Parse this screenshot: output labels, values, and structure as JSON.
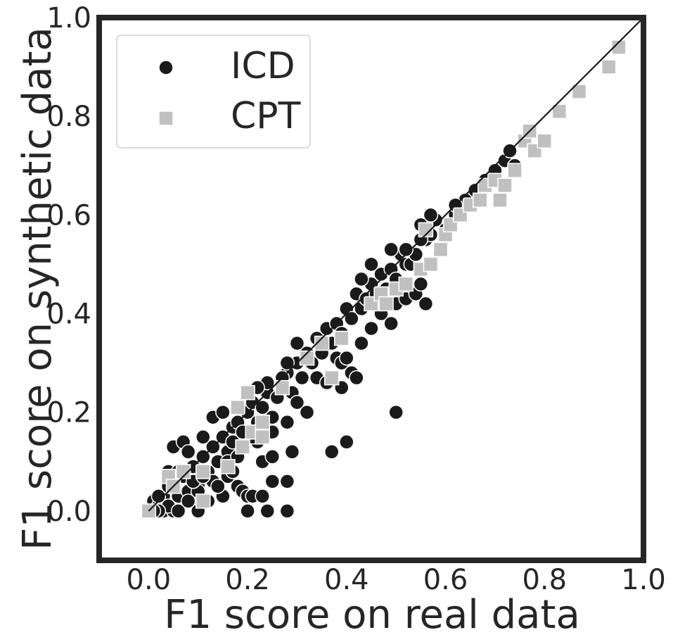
{
  "chart_data": {
    "type": "scatter",
    "title": "",
    "xlabel": "F1 score on real data",
    "ylabel": "F1 score on synthetic data",
    "xlim": [
      -0.1,
      1.0
    ],
    "ylim": [
      -0.1,
      1.0
    ],
    "xticks": [
      "0.0",
      "0.2",
      "0.4",
      "0.6",
      "0.8",
      "1.0"
    ],
    "yticks": [
      "0.0",
      "0.2",
      "0.4",
      "0.6",
      "0.8",
      "1.0"
    ],
    "grid": false,
    "legend_position": "top-left",
    "reference_line": {
      "from": [
        0,
        0
      ],
      "to": [
        1,
        1
      ],
      "color": "#1a1a1a"
    },
    "series": [
      {
        "name": "ICD",
        "marker": "circle",
        "color": "#1a1a1a",
        "points": [
          [
            0.0,
            0.0
          ],
          [
            0.01,
            0.02
          ],
          [
            0.02,
            0.01
          ],
          [
            0.03,
            0.03
          ],
          [
            0.03,
            0.0
          ],
          [
            0.05,
            0.05
          ],
          [
            0.05,
            0.0
          ],
          [
            0.06,
            0.03
          ],
          [
            0.07,
            0.07
          ],
          [
            0.08,
            0.04
          ],
          [
            0.09,
            0.09
          ],
          [
            0.1,
            0.05
          ],
          [
            0.1,
            0.0
          ],
          [
            0.11,
            0.11
          ],
          [
            0.12,
            0.08
          ],
          [
            0.13,
            0.13
          ],
          [
            0.14,
            0.1
          ],
          [
            0.15,
            0.15
          ],
          [
            0.16,
            0.12
          ],
          [
            0.17,
            0.14
          ],
          [
            0.05,
            0.13
          ],
          [
            0.07,
            0.14
          ],
          [
            0.11,
            0.15
          ],
          [
            0.13,
            0.19
          ],
          [
            0.04,
            0.08
          ],
          [
            0.08,
            0.12
          ],
          [
            0.15,
            0.2
          ],
          [
            0.17,
            0.17
          ],
          [
            0.18,
            0.18
          ],
          [
            0.19,
            0.16
          ],
          [
            0.2,
            0.2
          ],
          [
            0.21,
            0.22
          ],
          [
            0.22,
            0.18
          ],
          [
            0.23,
            0.21
          ],
          [
            0.24,
            0.24
          ],
          [
            0.25,
            0.19
          ],
          [
            0.26,
            0.23
          ],
          [
            0.27,
            0.25
          ],
          [
            0.28,
            0.28
          ],
          [
            0.29,
            0.24
          ],
          [
            0.3,
            0.3
          ],
          [
            0.31,
            0.27
          ],
          [
            0.32,
            0.32
          ],
          [
            0.33,
            0.3
          ],
          [
            0.34,
            0.35
          ],
          [
            0.35,
            0.32
          ],
          [
            0.36,
            0.37
          ],
          [
            0.37,
            0.34
          ],
          [
            0.38,
            0.38
          ],
          [
            0.39,
            0.36
          ],
          [
            0.4,
            0.41
          ],
          [
            0.41,
            0.39
          ],
          [
            0.42,
            0.44
          ],
          [
            0.43,
            0.41
          ],
          [
            0.44,
            0.43
          ],
          [
            0.45,
            0.46
          ],
          [
            0.46,
            0.44
          ],
          [
            0.47,
            0.48
          ],
          [
            0.48,
            0.45
          ],
          [
            0.49,
            0.49
          ],
          [
            0.5,
            0.47
          ],
          [
            0.51,
            0.52
          ],
          [
            0.52,
            0.5
          ],
          [
            0.53,
            0.5
          ],
          [
            0.54,
            0.52
          ],
          [
            0.55,
            0.58
          ],
          [
            0.56,
            0.55
          ],
          [
            0.57,
            0.56
          ],
          [
            0.58,
            0.59
          ],
          [
            0.6,
            0.57
          ],
          [
            0.62,
            0.6
          ],
          [
            0.64,
            0.63
          ],
          [
            0.66,
            0.65
          ],
          [
            0.7,
            0.69
          ],
          [
            0.72,
            0.71
          ],
          [
            0.73,
            0.73
          ],
          [
            0.74,
            0.7
          ],
          [
            0.28,
            0.3
          ],
          [
            0.3,
            0.34
          ],
          [
            0.27,
            0.27
          ],
          [
            0.24,
            0.26
          ],
          [
            0.22,
            0.25
          ],
          [
            0.22,
            0.14
          ],
          [
            0.25,
            0.16
          ],
          [
            0.28,
            0.18
          ],
          [
            0.3,
            0.22
          ],
          [
            0.32,
            0.2
          ],
          [
            0.34,
            0.27
          ],
          [
            0.36,
            0.26
          ],
          [
            0.38,
            0.31
          ],
          [
            0.39,
            0.3
          ],
          [
            0.4,
            0.31
          ],
          [
            0.41,
            0.28
          ],
          [
            0.43,
            0.34
          ],
          [
            0.45,
            0.37
          ],
          [
            0.47,
            0.4
          ],
          [
            0.49,
            0.38
          ],
          [
            0.5,
            0.42
          ],
          [
            0.52,
            0.43
          ],
          [
            0.54,
            0.44
          ],
          [
            0.55,
            0.46
          ],
          [
            0.56,
            0.42
          ],
          [
            0.43,
            0.47
          ],
          [
            0.45,
            0.5
          ],
          [
            0.49,
            0.53
          ],
          [
            0.52,
            0.53
          ],
          [
            0.55,
            0.55
          ],
          [
            0.57,
            0.6
          ],
          [
            0.62,
            0.62
          ],
          [
            0.68,
            0.67
          ],
          [
            0.1,
            0.04
          ],
          [
            0.12,
            0.02
          ],
          [
            0.15,
            0.03
          ],
          [
            0.13,
            0.06
          ],
          [
            0.16,
            0.07
          ],
          [
            0.18,
            0.05
          ],
          [
            0.19,
            0.04
          ],
          [
            0.2,
            0.03
          ],
          [
            0.21,
            0.03
          ],
          [
            0.2,
            0.0
          ],
          [
            0.23,
            0.03
          ],
          [
            0.24,
            0.0
          ],
          [
            0.28,
            0.0
          ],
          [
            0.25,
            0.06
          ],
          [
            0.28,
            0.06
          ],
          [
            0.23,
            0.1
          ],
          [
            0.25,
            0.11
          ],
          [
            0.29,
            0.12
          ],
          [
            0.37,
            0.12
          ],
          [
            0.4,
            0.14
          ],
          [
            0.39,
            0.25
          ],
          [
            0.42,
            0.27
          ],
          [
            0.5,
            0.2
          ],
          [
            0.02,
            0.03
          ],
          [
            0.04,
            0.01
          ],
          [
            0.06,
            0.0
          ],
          [
            0.08,
            0.02
          ],
          [
            0.09,
            0.06
          ],
          [
            0.11,
            0.07
          ],
          [
            0.14,
            0.05
          ],
          [
            0.16,
            0.1
          ],
          [
            0.17,
            0.08
          ],
          [
            0.18,
            0.11
          ],
          [
            0.19,
            0.13
          ],
          [
            0.21,
            0.15
          ],
          [
            0.06,
            0.08
          ],
          [
            0.04,
            0.05
          ],
          [
            0.02,
            0.0
          ],
          [
            0.01,
            0.0
          ]
        ]
      },
      {
        "name": "CPT",
        "marker": "square",
        "color": "#c0c0c0",
        "points": [
          [
            0.0,
            0.0
          ],
          [
            0.04,
            0.07
          ],
          [
            0.05,
            0.05
          ],
          [
            0.07,
            0.08
          ],
          [
            0.11,
            0.08
          ],
          [
            0.11,
            0.02
          ],
          [
            0.16,
            0.09
          ],
          [
            0.18,
            0.21
          ],
          [
            0.19,
            0.13
          ],
          [
            0.2,
            0.24
          ],
          [
            0.21,
            0.16
          ],
          [
            0.23,
            0.18
          ],
          [
            0.23,
            0.15
          ],
          [
            0.27,
            0.25
          ],
          [
            0.32,
            0.31
          ],
          [
            0.35,
            0.34
          ],
          [
            0.37,
            0.27
          ],
          [
            0.39,
            0.35
          ],
          [
            0.45,
            0.42
          ],
          [
            0.47,
            0.44
          ],
          [
            0.48,
            0.42
          ],
          [
            0.5,
            0.45
          ],
          [
            0.52,
            0.46
          ],
          [
            0.55,
            0.49
          ],
          [
            0.57,
            0.5
          ],
          [
            0.59,
            0.53
          ],
          [
            0.6,
            0.56
          ],
          [
            0.61,
            0.58
          ],
          [
            0.63,
            0.6
          ],
          [
            0.65,
            0.62
          ],
          [
            0.67,
            0.63
          ],
          [
            0.68,
            0.66
          ],
          [
            0.7,
            0.67
          ],
          [
            0.71,
            0.63
          ],
          [
            0.72,
            0.66
          ],
          [
            0.74,
            0.69
          ],
          [
            0.76,
            0.75
          ],
          [
            0.78,
            0.73
          ],
          [
            0.8,
            0.75
          ],
          [
            0.83,
            0.81
          ],
          [
            0.87,
            0.85
          ],
          [
            0.93,
            0.9
          ],
          [
            0.95,
            0.94
          ],
          [
            0.77,
            0.77
          ],
          [
            0.56,
            0.57
          ]
        ]
      }
    ]
  }
}
